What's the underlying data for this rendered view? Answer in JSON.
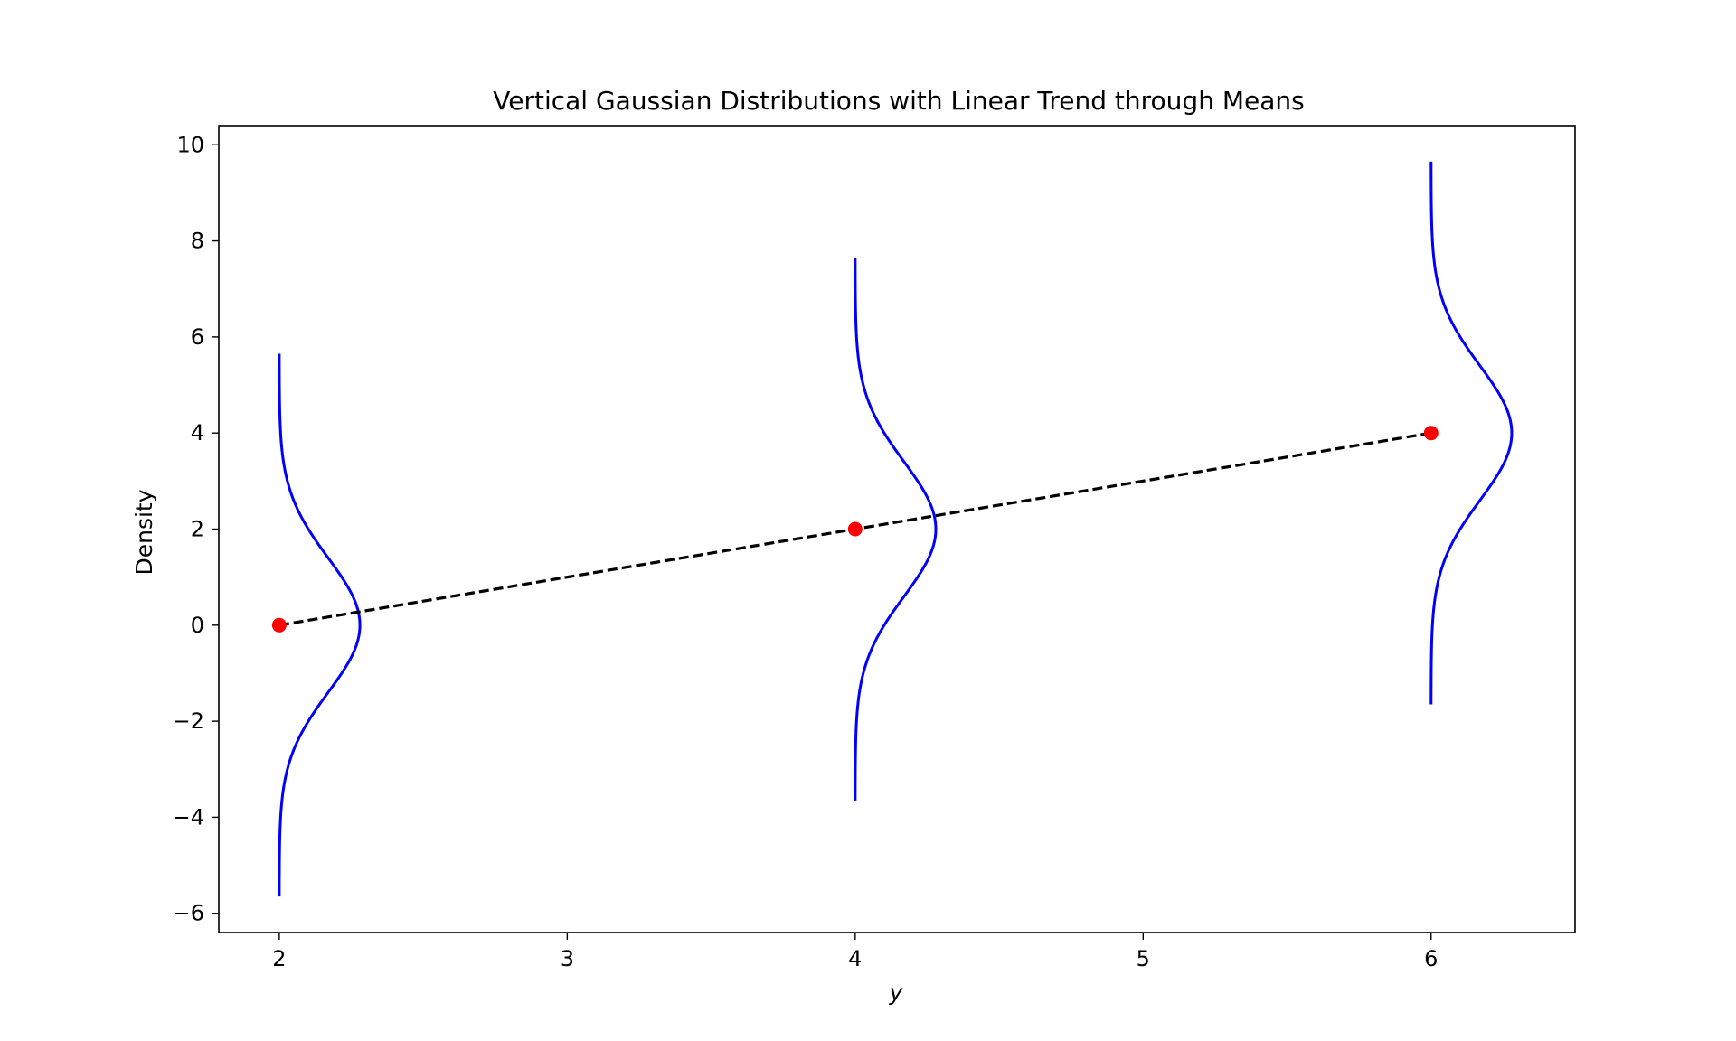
{
  "chart_data": {
    "type": "line",
    "title": "Vertical Gaussian Distributions with Linear Trend through Means",
    "xlabel": "y",
    "ylabel": "Density",
    "xlim": [
      1.79,
      6.5
    ],
    "ylim": [
      -6.4,
      10.4
    ],
    "x_ticks": [
      "2",
      "3",
      "4",
      "5",
      "6"
    ],
    "x_tick_values": [
      2,
      3,
      4,
      5,
      6
    ],
    "y_ticks": [
      "−6",
      "−4",
      "−2",
      "0",
      "2",
      "4",
      "6",
      "8",
      "10"
    ],
    "y_tick_values": [
      -6,
      -4,
      -2,
      0,
      2,
      4,
      6,
      8,
      10
    ],
    "grid": false,
    "distributions": [
      {
        "center_x": 2,
        "mean": 0,
        "sigma": 1.4,
        "peak_width": 0.28,
        "y_range": [
          -5.65,
          5.65
        ]
      },
      {
        "center_x": 4,
        "mean": 2,
        "sigma": 1.4,
        "peak_width": 0.28,
        "y_range": [
          -3.65,
          7.65
        ]
      },
      {
        "center_x": 6,
        "mean": 4,
        "sigma": 1.4,
        "peak_width": 0.28,
        "y_range": [
          -1.65,
          9.65
        ]
      }
    ],
    "means": {
      "x": [
        2,
        4,
        6
      ],
      "y": [
        0,
        2,
        4
      ]
    },
    "trend_line": {
      "x": [
        2,
        4,
        6
      ],
      "y": [
        0,
        2,
        4
      ],
      "style": "dashed"
    },
    "colors": {
      "curve": "#0000ff",
      "mean_marker": "#ff0000",
      "trend": "#000000"
    }
  }
}
